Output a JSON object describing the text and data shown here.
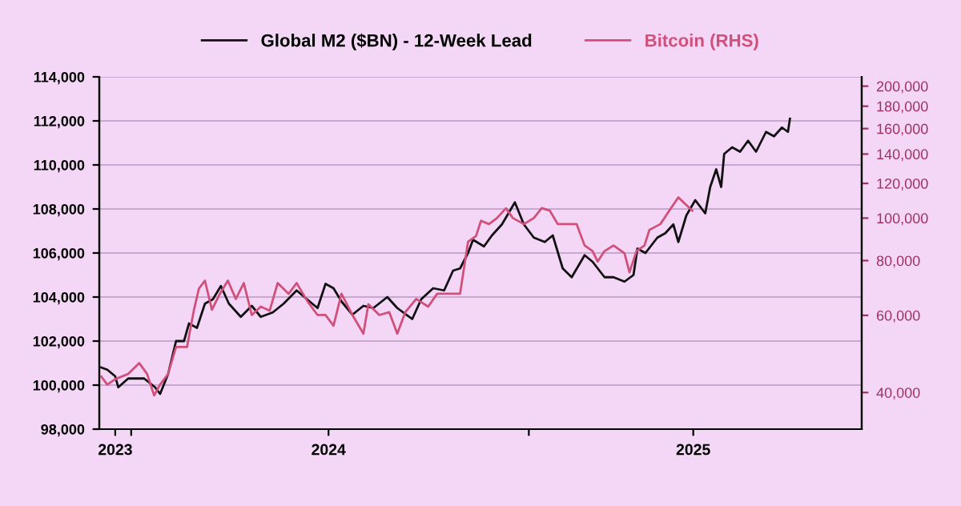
{
  "chart_data": {
    "type": "line",
    "series": [
      {
        "name": "Global M2 ($BN) - 12-Week Lead",
        "color": "#111111",
        "x": [
          "2023-05-18",
          "2023-05-24",
          "2023-06-01",
          "2023-06-04",
          "2023-06-14",
          "2023-06-30",
          "2023-07-11",
          "2023-07-16",
          "2023-07-24",
          "2023-08-01",
          "2023-08-09",
          "2023-08-14",
          "2023-08-22",
          "2023-08-30",
          "2023-09-07",
          "2023-09-15",
          "2023-09-23",
          "2023-10-05",
          "2023-10-16",
          "2023-10-25",
          "2023-11-06",
          "2023-11-17",
          "2023-11-30",
          "2023-12-13",
          "2023-12-21",
          "2023-12-29",
          "2024-01-06",
          "2024-01-14",
          "2024-01-25",
          "2024-02-05",
          "2024-02-15",
          "2024-02-29",
          "2024-03-10",
          "2024-03-25",
          "2024-04-03",
          "2024-04-15",
          "2024-04-26",
          "2024-05-05",
          "2024-05-12",
          "2024-05-20",
          "2024-05-25",
          "2024-06-05",
          "2024-06-13",
          "2024-06-23",
          "2024-07-06",
          "2024-07-15",
          "2024-07-25",
          "2024-08-05",
          "2024-08-13",
          "2024-08-23",
          "2024-09-01",
          "2024-09-14",
          "2024-09-22",
          "2024-10-04",
          "2024-10-13",
          "2024-10-24",
          "2024-11-02",
          "2024-11-06",
          "2024-11-14",
          "2024-11-26",
          "2024-12-04",
          "2024-12-12",
          "2024-12-17",
          "2024-12-25",
          "2025-01-03",
          "2025-01-13",
          "2025-01-18",
          "2025-01-24",
          "2025-01-29",
          "2025-02-01",
          "2025-02-09",
          "2025-02-17",
          "2025-02-25",
          "2025-03-05",
          "2025-03-15",
          "2025-03-23",
          "2025-03-31",
          "2025-04-06",
          "2025-04-08"
        ],
        "values": [
          100800,
          100700,
          100400,
          99900,
          100300,
          100300,
          99900,
          99600,
          100500,
          102000,
          102000,
          102800,
          102600,
          103700,
          103900,
          104500,
          103700,
          103100,
          103600,
          103100,
          103300,
          103700,
          104300,
          103800,
          103500,
          104600,
          104400,
          103800,
          103200,
          103600,
          103500,
          104000,
          103500,
          103000,
          103900,
          104400,
          104300,
          105200,
          105300,
          106000,
          106600,
          106300,
          106800,
          107300,
          108300,
          107300,
          106700,
          106500,
          106800,
          105300,
          104900,
          105900,
          105600,
          104900,
          104900,
          104700,
          105000,
          106200,
          106000,
          106700,
          106900,
          107300,
          106500,
          107700,
          108400,
          107800,
          109000,
          109800,
          109000,
          110500,
          110800,
          110600,
          111100,
          110600,
          111500,
          111300,
          111700,
          111500,
          112100
        ]
      },
      {
        "name": "Bitcoin (RHS)",
        "color": "#d0507a",
        "axis": "y2",
        "x": [
          "2023-05-18",
          "2023-05-24",
          "2023-06-01",
          "2023-06-14",
          "2023-06-25",
          "2023-07-03",
          "2023-07-10",
          "2023-07-16",
          "2023-07-24",
          "2023-08-01",
          "2023-08-12",
          "2023-08-19",
          "2023-08-24",
          "2023-08-30",
          "2023-09-06",
          "2023-09-14",
          "2023-09-22",
          "2023-09-30",
          "2023-10-08",
          "2023-10-16",
          "2023-10-25",
          "2023-11-03",
          "2023-11-11",
          "2023-11-22",
          "2023-11-30",
          "2023-12-11",
          "2023-12-21",
          "2023-12-29",
          "2024-01-06",
          "2024-01-14",
          "2024-01-25",
          "2024-02-05",
          "2024-02-10",
          "2024-02-21",
          "2024-03-02",
          "2024-03-10",
          "2024-03-18",
          "2024-03-29",
          "2024-04-10",
          "2024-04-19",
          "2024-05-01",
          "2024-05-12",
          "2024-05-20",
          "2024-05-28",
          "2024-06-02",
          "2024-06-10",
          "2024-06-18",
          "2024-06-27",
          "2024-07-04",
          "2024-07-15",
          "2024-07-25",
          "2024-08-02",
          "2024-08-10",
          "2024-08-18",
          "2024-08-29",
          "2024-09-06",
          "2024-09-14",
          "2024-09-22",
          "2024-09-27",
          "2024-10-04",
          "2024-10-13",
          "2024-10-24",
          "2024-10-29",
          "2024-11-05",
          "2024-11-13",
          "2024-11-18",
          "2024-11-29",
          "2024-12-08",
          "2024-12-17",
          "2024-12-25",
          "2024-12-31"
        ],
        "values": [
          43500,
          41700,
          42900,
          44100,
          46700,
          44100,
          39400,
          41700,
          44100,
          50800,
          50800,
          61800,
          69100,
          72000,
          61800,
          67200,
          72000,
          65400,
          71100,
          60100,
          62800,
          61500,
          71100,
          67200,
          71100,
          64500,
          60100,
          60100,
          56800,
          67200,
          60100,
          54500,
          63600,
          60100,
          61000,
          54500,
          61000,
          65400,
          62800,
          67200,
          67200,
          67200,
          88300,
          91000,
          98600,
          96900,
          100000,
          105300,
          100000,
          96900,
          100000,
          105400,
          104000,
          96900,
          96900,
          96900,
          86600,
          84100,
          79600,
          84100,
          86600,
          83100,
          75200,
          84100,
          86600,
          94000,
          96900,
          104000,
          111500,
          107100,
          104000
        ]
      }
    ],
    "xlim": [
      "2023-05-16",
      "2025-06-19"
    ],
    "xticks": [
      {
        "value": "2023-06-01",
        "label": "2023"
      },
      {
        "value": "2023-06-17",
        "label": null
      },
      {
        "value": "2024-01-01",
        "label": "2024"
      },
      {
        "value": "2024-07-20",
        "label": null
      },
      {
        "value": "2025-01-01",
        "label": "2025"
      }
    ],
    "ylim": [
      98000,
      114000
    ],
    "yticks": [
      {
        "value": 98000,
        "label": "98,000"
      },
      {
        "value": 100000,
        "label": "100,000"
      },
      {
        "value": 102000,
        "label": "102,000"
      },
      {
        "value": 104000,
        "label": "104,000"
      },
      {
        "value": 106000,
        "label": "106,000"
      },
      {
        "value": 108000,
        "label": "108,000"
      },
      {
        "value": 110000,
        "label": "110,000"
      },
      {
        "value": 112000,
        "label": "112,000"
      },
      {
        "value": 114000,
        "label": "114,000"
      }
    ],
    "log": "y2",
    "y2lim": [
      33000,
      210000
    ],
    "y2ticks": [
      {
        "value": 40000,
        "label": "40,000"
      },
      {
        "value": 60000,
        "label": "60,000"
      },
      {
        "value": 80000,
        "label": "80,000"
      },
      {
        "value": 100000,
        "label": "100,000"
      },
      {
        "value": 120000,
        "label": "120,000"
      },
      {
        "value": 140000,
        "label": "140,000"
      },
      {
        "value": 160000,
        "label": "160,000"
      },
      {
        "value": 180000,
        "label": "180,000"
      },
      {
        "value": 200000,
        "label": "200,000"
      }
    ],
    "grid": "y",
    "legend": "top",
    "line_style": "solid",
    "marker": "none"
  }
}
